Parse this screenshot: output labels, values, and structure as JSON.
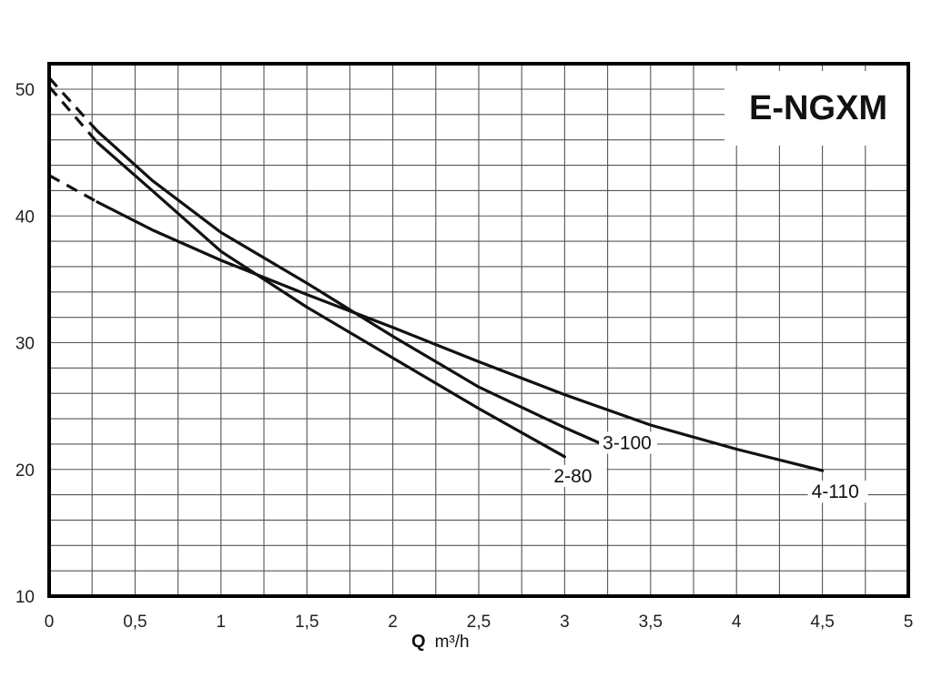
{
  "chart_data": {
    "type": "line",
    "title": "E-NGXM",
    "xlabel_bold": "Q",
    "xlabel_unit": "m³/h",
    "ylabel": "",
    "xlim": [
      0,
      5
    ],
    "ylim": [
      10,
      50.5
    ],
    "xticks": [
      "0",
      "0,5",
      "1",
      "1,5",
      "2",
      "2,5",
      "3",
      "3,5",
      "4",
      "4,5",
      "5"
    ],
    "xtick_values": [
      0,
      0.5,
      1,
      1.5,
      2,
      2.5,
      3,
      3.5,
      4,
      4.5,
      5
    ],
    "yticks": [
      "10",
      "20",
      "30",
      "40",
      "50"
    ],
    "ytick_values": [
      10,
      20,
      30,
      40,
      50
    ],
    "grid": true,
    "grid_minor_x": 0.25,
    "grid_minor_y": 2,
    "series": [
      {
        "name": "2-80",
        "dashed": [
          [
            0,
            50.2
          ],
          [
            0.28,
            45.8
          ]
        ],
        "points": [
          [
            0.28,
            45.8
          ],
          [
            0.6,
            42.0
          ],
          [
            1.0,
            37.2
          ],
          [
            1.5,
            32.8
          ],
          [
            2.0,
            28.8
          ],
          [
            2.5,
            24.8
          ],
          [
            3.0,
            21.0
          ]
        ]
      },
      {
        "name": "3-100",
        "dashed": [
          [
            0,
            50.9
          ],
          [
            0.28,
            46.7
          ]
        ],
        "points": [
          [
            0.28,
            46.7
          ],
          [
            0.6,
            42.8
          ],
          [
            1.0,
            38.7
          ],
          [
            1.5,
            34.7
          ],
          [
            2.0,
            30.5
          ],
          [
            2.5,
            26.5
          ],
          [
            3.0,
            23.3
          ],
          [
            3.2,
            22.1
          ]
        ]
      },
      {
        "name": "4-110",
        "dashed": [
          [
            0,
            43.2
          ],
          [
            0.28,
            41.1
          ]
        ],
        "points": [
          [
            0.28,
            41.1
          ],
          [
            0.6,
            38.9
          ],
          [
            1.0,
            36.5
          ],
          [
            1.5,
            33.8
          ],
          [
            2.0,
            31.2
          ],
          [
            2.5,
            28.5
          ],
          [
            3.0,
            25.9
          ],
          [
            3.5,
            23.5
          ],
          [
            4.0,
            21.6
          ],
          [
            4.5,
            19.9
          ]
        ]
      }
    ]
  }
}
